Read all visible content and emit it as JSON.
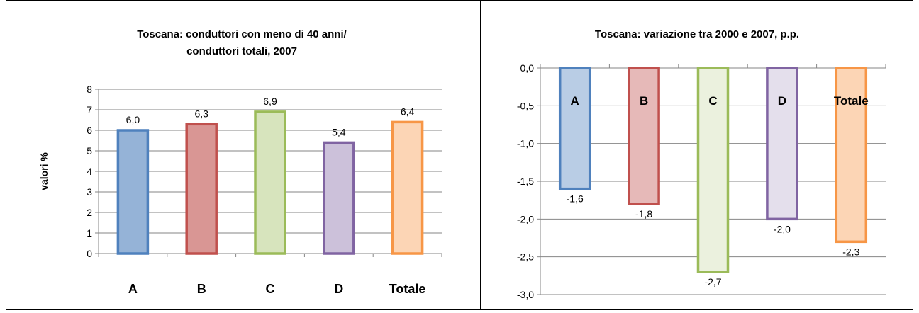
{
  "chart_data": [
    {
      "type": "bar",
      "title": "Toscana: conduttori con meno di 40 anni/ conduttori totali, 2007",
      "title_lines": [
        "Toscana: conduttori con meno di 40 anni/",
        "conduttori totali, 2007"
      ],
      "ylabel": "valori %",
      "xlabel": "",
      "categories": [
        "A",
        "B",
        "C",
        "D",
        "Totale"
      ],
      "values": [
        6.0,
        6.3,
        6.9,
        5.4,
        6.4
      ],
      "value_labels": [
        "6,0",
        "6,3",
        "6,9",
        "5,4",
        "6,4"
      ],
      "ylim": [
        0,
        8
      ],
      "yticks": [
        0,
        1,
        2,
        3,
        4,
        5,
        6,
        7,
        8
      ],
      "ytick_labels": [
        "0",
        "1",
        "2",
        "3",
        "4",
        "5",
        "6",
        "7",
        "8"
      ],
      "grid": true,
      "legend": "none",
      "colors": [
        {
          "stroke": "#4F81BD",
          "fill": "#95B3D7"
        },
        {
          "stroke": "#C0504D",
          "fill": "#D99694"
        },
        {
          "stroke": "#9BBB59",
          "fill": "#D7E4BD"
        },
        {
          "stroke": "#8064A2",
          "fill": "#CCC1DA"
        },
        {
          "stroke": "#F79646",
          "fill": "#FCD5B5"
        }
      ]
    },
    {
      "type": "bar",
      "title": "Toscana: variazione tra 2000 e 2007, p.p.",
      "title_lines": [
        "Toscana: variazione tra 2000 e 2007, p.p."
      ],
      "ylabel": "",
      "xlabel": "",
      "categories": [
        "A",
        "B",
        "C",
        "D",
        "Totale"
      ],
      "values": [
        -1.6,
        -1.8,
        -2.7,
        -2.0,
        -2.3
      ],
      "value_labels": [
        "-1,6",
        "-1,8",
        "-2,7",
        "-2,0",
        "-2,3"
      ],
      "ylim": [
        -3.0,
        0.0
      ],
      "yticks": [
        0.0,
        -0.5,
        -1.0,
        -1.5,
        -2.0,
        -2.5,
        -3.0
      ],
      "ytick_labels": [
        "0,0",
        "-0,5",
        "-1,0",
        "-1,5",
        "-2,0",
        "-2,5",
        "-3,0"
      ],
      "grid": true,
      "legend": "none",
      "category_labels_position": "inside-top",
      "colors": [
        {
          "stroke": "#4F81BD",
          "fill": "#B9CDE5"
        },
        {
          "stroke": "#C0504D",
          "fill": "#E6B9B8"
        },
        {
          "stroke": "#9BBB59",
          "fill": "#EBF1DE"
        },
        {
          "stroke": "#8064A2",
          "fill": "#E4DFEC"
        },
        {
          "stroke": "#F79646",
          "fill": "#FCD5B5"
        }
      ]
    }
  ]
}
